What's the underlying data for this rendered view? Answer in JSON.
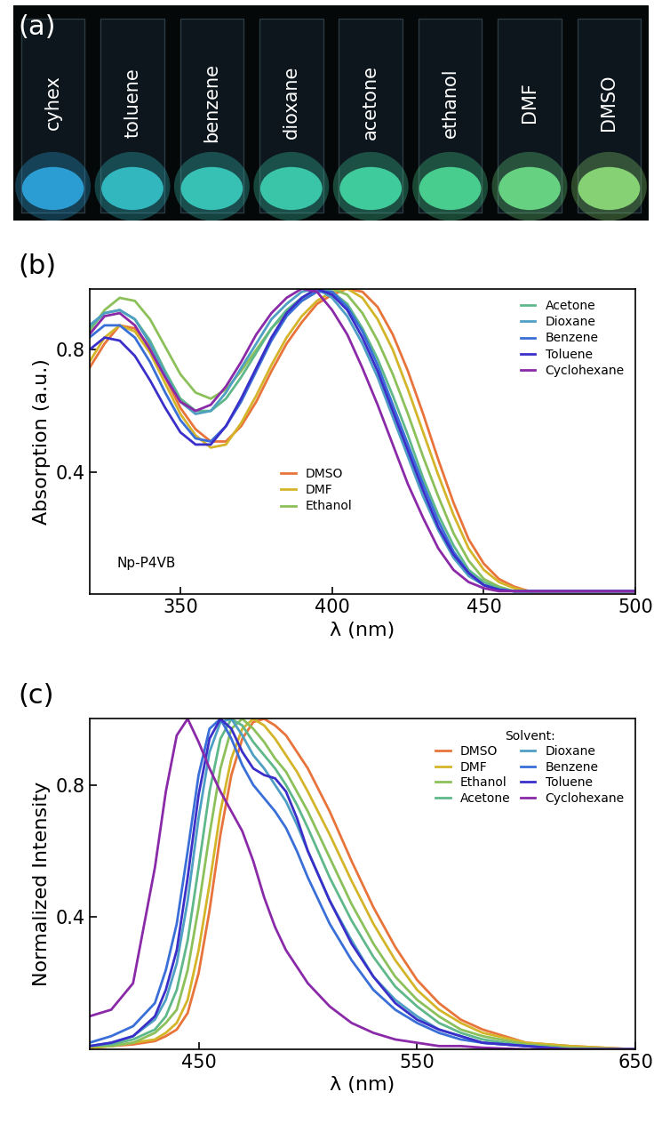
{
  "photo": {
    "panel_label": "(a)",
    "vials": [
      {
        "label": "cyhex",
        "color": "#2fa8e0"
      },
      {
        "label": "toluene",
        "color": "#35c4cc"
      },
      {
        "label": "benzene",
        "color": "#3bcdc0"
      },
      {
        "label": "dioxane",
        "color": "#3ed3b4"
      },
      {
        "label": "acetone",
        "color": "#45d9a6"
      },
      {
        "label": "ethanol",
        "color": "#4ddc98"
      },
      {
        "label": "DMF",
        "color": "#6fe08a"
      },
      {
        "label": "DMSO",
        "color": "#8fe07a"
      }
    ]
  },
  "chart_data": [
    {
      "type": "line",
      "title": "(b)",
      "x_label": "λ (nm)",
      "y_label": "Absorption (a.u.)",
      "annotations": [
        "Np-P4VB"
      ],
      "x": [
        320,
        325,
        330,
        335,
        340,
        345,
        350,
        355,
        360,
        365,
        370,
        375,
        380,
        385,
        390,
        395,
        400,
        405,
        410,
        415,
        420,
        425,
        430,
        435,
        440,
        445,
        450,
        455,
        460,
        465,
        470,
        480,
        490,
        500
      ],
      "xlim": [
        320,
        500
      ],
      "xticks": [
        350,
        400,
        450,
        500
      ],
      "ylim": [
        0,
        1.0
      ],
      "yticks": [
        0.4,
        0.8
      ],
      "legend": "upper right",
      "series": [
        {
          "name": "DMSO",
          "color": "#e8743b",
          "values": [
            0.74,
            0.82,
            0.88,
            0.87,
            0.81,
            0.71,
            0.61,
            0.54,
            0.5,
            0.5,
            0.55,
            0.63,
            0.73,
            0.82,
            0.89,
            0.95,
            0.98,
            1.0,
            0.99,
            0.94,
            0.85,
            0.73,
            0.59,
            0.44,
            0.3,
            0.18,
            0.1,
            0.05,
            0.025,
            0.01,
            0.01,
            0.01,
            0.01,
            0.01
          ]
        },
        {
          "name": "DMF",
          "color": "#d4b52a",
          "values": [
            0.76,
            0.84,
            0.88,
            0.86,
            0.79,
            0.69,
            0.59,
            0.52,
            0.48,
            0.49,
            0.56,
            0.65,
            0.75,
            0.84,
            0.91,
            0.96,
            0.99,
            1.0,
            0.97,
            0.9,
            0.8,
            0.67,
            0.53,
            0.39,
            0.26,
            0.15,
            0.08,
            0.04,
            0.02,
            0.01,
            0.01,
            0.01,
            0.01,
            0.01
          ]
        },
        {
          "name": "Ethanol",
          "color": "#8cc05a",
          "values": [
            0.86,
            0.93,
            0.97,
            0.96,
            0.9,
            0.81,
            0.72,
            0.66,
            0.64,
            0.67,
            0.73,
            0.8,
            0.87,
            0.92,
            0.96,
            0.99,
            1.0,
            0.98,
            0.92,
            0.83,
            0.72,
            0.59,
            0.45,
            0.32,
            0.2,
            0.11,
            0.05,
            0.025,
            0.01,
            0.01,
            0.01,
            0.01,
            0.01,
            0.01
          ]
        },
        {
          "name": "Acetone",
          "color": "#5fb88a",
          "values": [
            0.87,
            0.92,
            0.93,
            0.9,
            0.83,
            0.73,
            0.64,
            0.6,
            0.6,
            0.64,
            0.71,
            0.79,
            0.87,
            0.93,
            0.97,
            1.0,
            0.99,
            0.95,
            0.87,
            0.77,
            0.65,
            0.52,
            0.38,
            0.26,
            0.16,
            0.08,
            0.04,
            0.02,
            0.01,
            0.01,
            0.01,
            0.01,
            0.01,
            0.01
          ]
        },
        {
          "name": "Dioxane",
          "color": "#4f9fc4",
          "values": [
            0.88,
            0.92,
            0.93,
            0.9,
            0.82,
            0.72,
            0.63,
            0.59,
            0.6,
            0.66,
            0.74,
            0.82,
            0.9,
            0.95,
            0.99,
            1.0,
            0.97,
            0.91,
            0.82,
            0.71,
            0.58,
            0.45,
            0.32,
            0.21,
            0.12,
            0.06,
            0.03,
            0.015,
            0.01,
            0.01,
            0.01,
            0.01,
            0.01,
            0.01
          ]
        },
        {
          "name": "Benzene",
          "color": "#3a6fd8",
          "values": [
            0.84,
            0.88,
            0.88,
            0.84,
            0.76,
            0.66,
            0.57,
            0.51,
            0.5,
            0.55,
            0.63,
            0.73,
            0.83,
            0.91,
            0.96,
            0.99,
            0.99,
            0.94,
            0.86,
            0.75,
            0.62,
            0.49,
            0.36,
            0.24,
            0.14,
            0.07,
            0.03,
            0.015,
            0.01,
            0.01,
            0.01,
            0.01,
            0.01,
            0.01
          ]
        },
        {
          "name": "Toluene",
          "color": "#3b2fc9",
          "values": [
            0.8,
            0.84,
            0.83,
            0.78,
            0.7,
            0.61,
            0.53,
            0.49,
            0.49,
            0.55,
            0.64,
            0.74,
            0.84,
            0.92,
            0.97,
            1.0,
            0.98,
            0.93,
            0.84,
            0.73,
            0.6,
            0.47,
            0.34,
            0.22,
            0.13,
            0.07,
            0.03,
            0.015,
            0.01,
            0.01,
            0.01,
            0.01,
            0.01,
            0.01
          ]
        },
        {
          "name": "Cyclohexane",
          "color": "#8a2aa8",
          "values": [
            0.85,
            0.91,
            0.92,
            0.88,
            0.8,
            0.71,
            0.63,
            0.6,
            0.62,
            0.68,
            0.76,
            0.85,
            0.92,
            0.97,
            1.0,
            0.99,
            0.93,
            0.85,
            0.74,
            0.62,
            0.49,
            0.36,
            0.25,
            0.15,
            0.08,
            0.04,
            0.02,
            0.01,
            0.01,
            0.01,
            0.01,
            0.01,
            0.01,
            0.01
          ]
        }
      ]
    },
    {
      "type": "line",
      "title": "(c)",
      "x_label": "λ (nm)",
      "y_label": "Normalized Intensity",
      "legend_title": "Solvent:",
      "x": [
        400,
        410,
        420,
        430,
        435,
        440,
        445,
        450,
        455,
        460,
        465,
        470,
        475,
        480,
        485,
        490,
        495,
        500,
        510,
        520,
        530,
        540,
        550,
        560,
        570,
        580,
        600,
        620,
        650
      ],
      "xlim": [
        400,
        650
      ],
      "xticks": [
        450,
        550,
        650
      ],
      "ylim": [
        0,
        1.0
      ],
      "yticks": [
        0.4,
        0.8
      ],
      "legend": "upper right",
      "series": [
        {
          "name": "DMSO",
          "color": "#e8743b",
          "values": [
            0.005,
            0.01,
            0.015,
            0.025,
            0.04,
            0.06,
            0.11,
            0.23,
            0.42,
            0.65,
            0.83,
            0.94,
            0.99,
            1.0,
            0.98,
            0.95,
            0.9,
            0.85,
            0.72,
            0.57,
            0.43,
            0.31,
            0.21,
            0.14,
            0.09,
            0.06,
            0.02,
            0.01,
            0
          ]
        },
        {
          "name": "DMF",
          "color": "#d4b52a",
          "values": [
            0.005,
            0.01,
            0.02,
            0.03,
            0.05,
            0.08,
            0.15,
            0.3,
            0.5,
            0.72,
            0.88,
            0.97,
            1.0,
            0.98,
            0.94,
            0.89,
            0.84,
            0.78,
            0.65,
            0.51,
            0.38,
            0.27,
            0.18,
            0.12,
            0.08,
            0.05,
            0.02,
            0.01,
            0
          ]
        },
        {
          "name": "Ethanol",
          "color": "#8cc05a",
          "values": [
            0.01,
            0.01,
            0.02,
            0.05,
            0.08,
            0.12,
            0.24,
            0.43,
            0.65,
            0.85,
            0.97,
            1.0,
            0.97,
            0.93,
            0.88,
            0.84,
            0.78,
            0.72,
            0.58,
            0.44,
            0.32,
            0.22,
            0.15,
            0.1,
            0.06,
            0.04,
            0.015,
            0.005,
            0
          ]
        },
        {
          "name": "Acetone",
          "color": "#5fb88a",
          "values": [
            0.01,
            0.015,
            0.03,
            0.06,
            0.1,
            0.18,
            0.33,
            0.55,
            0.78,
            0.94,
            1.0,
            0.98,
            0.93,
            0.89,
            0.85,
            0.8,
            0.74,
            0.67,
            0.52,
            0.39,
            0.28,
            0.19,
            0.13,
            0.08,
            0.05,
            0.03,
            0.01,
            0,
            0
          ]
        },
        {
          "name": "Dioxane",
          "color": "#4f9fc4",
          "values": [
            0.01,
            0.02,
            0.04,
            0.09,
            0.15,
            0.26,
            0.45,
            0.7,
            0.9,
            0.99,
            1.0,
            0.95,
            0.89,
            0.85,
            0.8,
            0.75,
            0.68,
            0.6,
            0.45,
            0.33,
            0.22,
            0.15,
            0.1,
            0.06,
            0.04,
            0.02,
            0.01,
            0,
            0
          ]
        },
        {
          "name": "Benzene",
          "color": "#3a6fd8",
          "values": [
            0.02,
            0.04,
            0.07,
            0.14,
            0.24,
            0.38,
            0.6,
            0.83,
            0.97,
            1.0,
            0.94,
            0.86,
            0.8,
            0.76,
            0.72,
            0.67,
            0.6,
            0.52,
            0.38,
            0.27,
            0.18,
            0.12,
            0.08,
            0.05,
            0.03,
            0.02,
            0.01,
            0,
            0
          ]
        },
        {
          "name": "Toluene",
          "color": "#3b2fc9",
          "values": [
            0.01,
            0.02,
            0.04,
            0.1,
            0.18,
            0.3,
            0.52,
            0.77,
            0.94,
            1.0,
            0.97,
            0.9,
            0.85,
            0.83,
            0.82,
            0.78,
            0.7,
            0.6,
            0.45,
            0.32,
            0.22,
            0.14,
            0.09,
            0.06,
            0.04,
            0.02,
            0.01,
            0,
            0
          ]
        },
        {
          "name": "Cyclohexane",
          "color": "#8a2aa8",
          "values": [
            0.1,
            0.12,
            0.2,
            0.55,
            0.78,
            0.95,
            1.0,
            0.93,
            0.85,
            0.78,
            0.72,
            0.66,
            0.57,
            0.46,
            0.37,
            0.3,
            0.25,
            0.2,
            0.13,
            0.08,
            0.05,
            0.03,
            0.02,
            0.01,
            0.01,
            0.005,
            0,
            0,
            0
          ]
        }
      ]
    }
  ]
}
